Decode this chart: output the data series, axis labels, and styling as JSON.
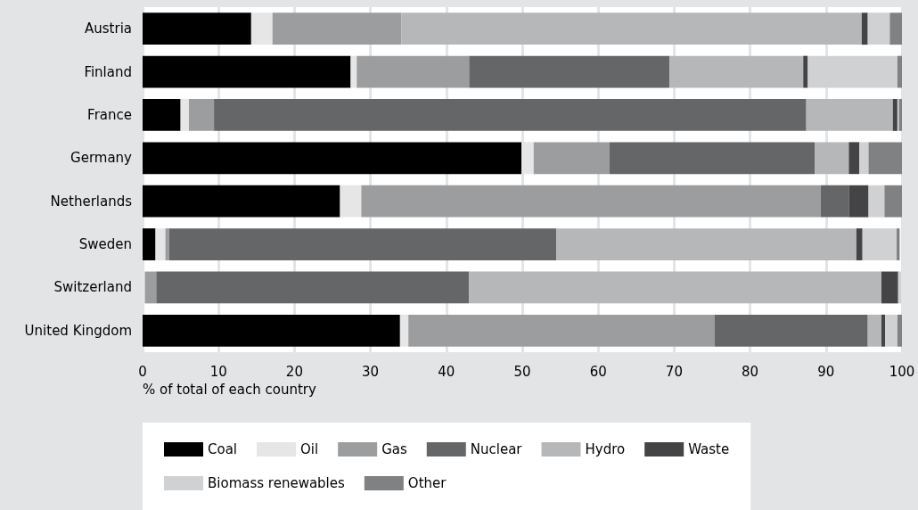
{
  "chart_data": {
    "type": "bar",
    "orientation": "horizontal",
    "stacked": true,
    "categories": [
      "Austria",
      "Finland",
      "France",
      "Germany",
      "Netherlands",
      "Sweden",
      "Switzerland",
      "United Kingdom"
    ],
    "xlabel": "% of total of each country",
    "xlim": [
      0,
      100
    ],
    "xticks": [
      0,
      10,
      20,
      30,
      40,
      50,
      60,
      70,
      80,
      90,
      100
    ],
    "grid": "x",
    "legend": "bottom",
    "series": [
      {
        "name": "Coal",
        "color": "#000000",
        "values": [
          14.3,
          27.4,
          5.0,
          49.9,
          26.0,
          1.7,
          0,
          33.9
        ]
      },
      {
        "name": "Oil",
        "color": "#e6e6e6",
        "values": [
          2.8,
          0.8,
          1.1,
          1.6,
          2.8,
          1.3,
          0.3,
          1.1
        ]
      },
      {
        "name": "Gas",
        "color": "#9c9d9f",
        "values": [
          17.0,
          14.8,
          3.3,
          10.0,
          60.5,
          0.5,
          1.5,
          40.3
        ]
      },
      {
        "name": "Nuclear",
        "color": "#656668",
        "values": [
          0,
          26.4,
          78.0,
          27.0,
          3.7,
          51.0,
          41.2,
          20.2
        ]
      },
      {
        "name": "Hydro",
        "color": "#b6b7b9",
        "values": [
          60.6,
          17.6,
          11.4,
          4.5,
          0,
          39.5,
          54.3,
          1.8
        ]
      },
      {
        "name": "Waste",
        "color": "#444446",
        "values": [
          0.8,
          0.6,
          0.6,
          1.4,
          2.6,
          0.8,
          2.2,
          0.5
        ]
      },
      {
        "name": "Biomass renewables",
        "color": "#d0d1d3",
        "values": [
          2.9,
          11.8,
          0.2,
          1.2,
          2.1,
          4.5,
          0.4,
          1.6
        ]
      },
      {
        "name": "Other",
        "color": "#808183",
        "values": [
          1.6,
          0.6,
          0.4,
          4.4,
          2.3,
          0.4,
          0,
          0.6
        ]
      }
    ]
  }
}
